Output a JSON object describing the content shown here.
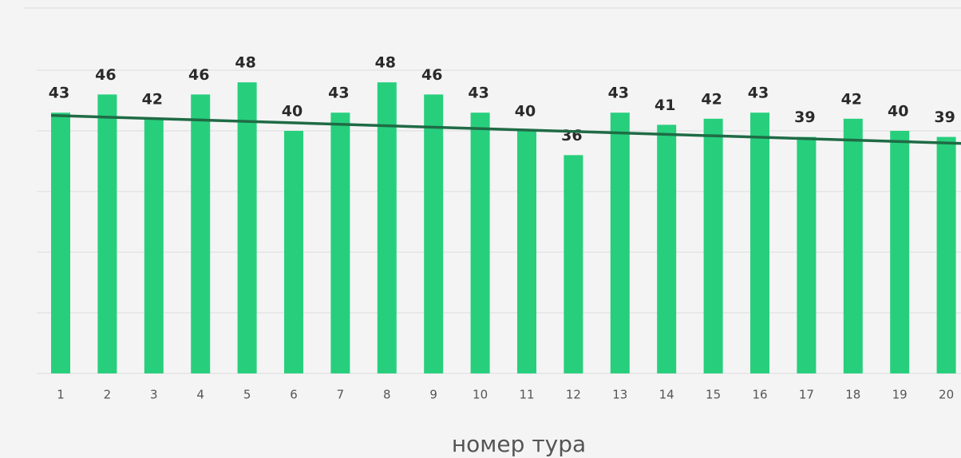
{
  "chart_data": {
    "type": "bar",
    "x_label": "номер тура",
    "categories": [
      "1",
      "2",
      "3",
      "4",
      "5",
      "6",
      "7",
      "8",
      "9",
      "10",
      "11",
      "12",
      "13",
      "14",
      "15",
      "16",
      "17",
      "18",
      "19",
      "20"
    ],
    "values": [
      43,
      46,
      42,
      46,
      48,
      40,
      43,
      48,
      46,
      43,
      40,
      36,
      43,
      41,
      42,
      43,
      39,
      42,
      40,
      39
    ],
    "color": "#27cf7d",
    "ylim": [
      0,
      50
    ],
    "yticks": [
      0,
      10,
      20,
      30,
      40,
      50
    ],
    "grid": true,
    "trendline": {
      "color": "#1f6b45",
      "values": [
        42.5,
        38.0
      ]
    }
  }
}
